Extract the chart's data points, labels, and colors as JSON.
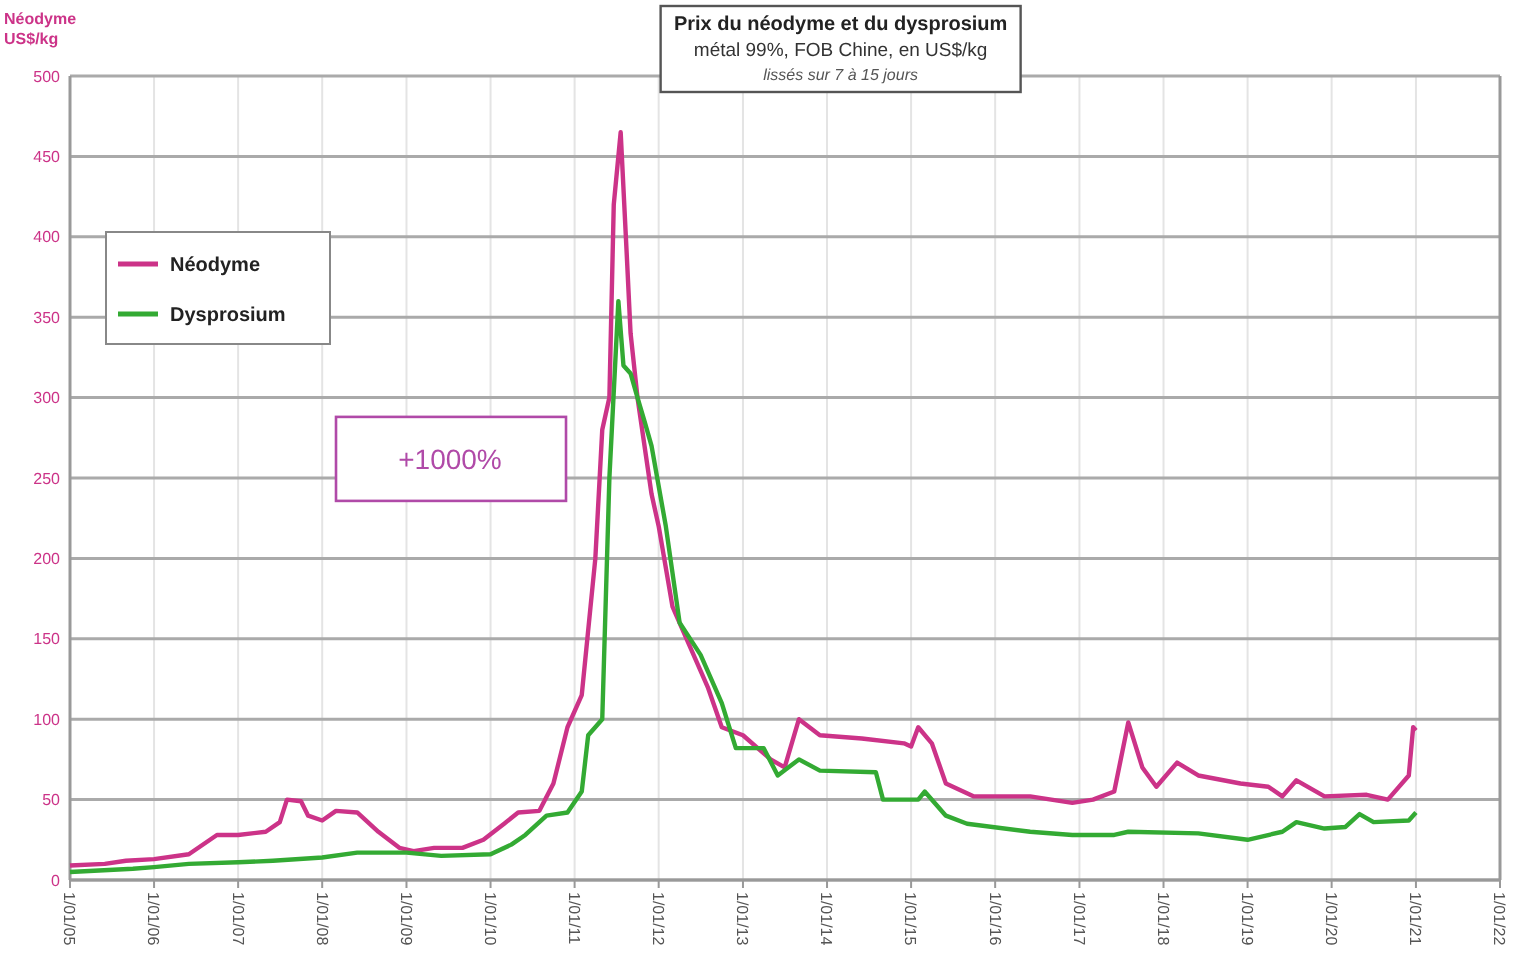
{
  "chart_data": {
    "type": "line",
    "title": "Prix du néodyme et du dysprosium",
    "subtitle": "métal 99%, FOB Chine, en US$/kg",
    "ylabel": "Néodyme\nUS$/kg",
    "annotations": [
      "+1000%",
      "lissés sur 7 à 15 jours"
    ],
    "legend": "top left",
    "grid": true,
    "line_style": "solid",
    "marker": "none",
    "xlim": [
      "2005-01-01",
      "2022-01-01"
    ],
    "xticks": [
      {
        "value": "2005-01-01",
        "label": "1/01/05"
      },
      {
        "value": "2006-01-01",
        "label": "1/01/06"
      },
      {
        "value": "2007-01-01",
        "label": "1/01/07"
      },
      {
        "value": "2008-01-01",
        "label": "1/01/08"
      },
      {
        "value": "2009-01-01",
        "label": "1/01/09"
      },
      {
        "value": "2010-01-01",
        "label": "1/01/10"
      },
      {
        "value": "2011-01-01",
        "label": "1/01/11"
      },
      {
        "value": "2012-01-01",
        "label": "1/01/12"
      },
      {
        "value": "2013-01-01",
        "label": "1/01/13"
      },
      {
        "value": "2014-01-01",
        "label": "1/01/14"
      },
      {
        "value": "2015-01-01",
        "label": "1/01/15"
      },
      {
        "value": "2016-01-01",
        "label": "1/01/16"
      },
      {
        "value": "2017-01-01",
        "label": "1/01/17"
      },
      {
        "value": "2018-01-01",
        "label": "1/01/18"
      },
      {
        "value": "2019-01-01",
        "label": "1/01/19"
      },
      {
        "value": "2020-01-01",
        "label": "1/01/20"
      },
      {
        "value": "2021-01-01",
        "label": "1/01/21"
      },
      {
        "value": "2022-01-01",
        "label": "1/01/22"
      }
    ],
    "ylim": [
      0,
      500
    ],
    "yticks": [
      0,
      50,
      100,
      150,
      200,
      250,
      300,
      350,
      400,
      450,
      500
    ],
    "series": [
      {
        "name": "Néodyme",
        "color": "#cc3388",
        "x": [
          "2005-01",
          "2005-06",
          "2005-09",
          "2006-01",
          "2006-06",
          "2006-10",
          "2007-01",
          "2007-05",
          "2007-07",
          "2007-08",
          "2007-10",
          "2007-11",
          "2008-01",
          "2008-03",
          "2008-06",
          "2008-09",
          "2008-12",
          "2009-02",
          "2009-05",
          "2009-09",
          "2009-12",
          "2010-03",
          "2010-05",
          "2010-08",
          "2010-10",
          "2010-12",
          "2011-02",
          "2011-04",
          "2011-05",
          "2011-06",
          "2011-06-20",
          "2011-07-20",
          "2011-08-15",
          "2011-09",
          "2011-10",
          "2011-12",
          "2012-01",
          "2012-03",
          "2012-05",
          "2012-08",
          "2012-10",
          "2013-01",
          "2013-05",
          "2013-07",
          "2013-09",
          "2013-12",
          "2014-06",
          "2014-12",
          "2015-01",
          "2015-02",
          "2015-04",
          "2015-06",
          "2015-10",
          "2016-06",
          "2016-12",
          "2017-03",
          "2017-06",
          "2017-08",
          "2017-10",
          "2017-12",
          "2018-03",
          "2018-06",
          "2018-12",
          "2019-04",
          "2019-06",
          "2019-08",
          "2019-10",
          "2019-12",
          "2020-06",
          "2020-09",
          "2020-12",
          "2020-12-20",
          "2021-01"
        ],
        "values": [
          9,
          10,
          12,
          13,
          16,
          28,
          28,
          30,
          36,
          50,
          49,
          40,
          37,
          43,
          42,
          30,
          20,
          18,
          20,
          20,
          25,
          35,
          42,
          43,
          60,
          95,
          115,
          200,
          280,
          300,
          420,
          465,
          390,
          340,
          300,
          240,
          220,
          170,
          150,
          120,
          95,
          90,
          75,
          70,
          100,
          90,
          88,
          85,
          83,
          95,
          85,
          60,
          52,
          52,
          48,
          50,
          55,
          98,
          70,
          58,
          73,
          65,
          60,
          58,
          52,
          62,
          57,
          52,
          53,
          50,
          65,
          95,
          93
        ]
      },
      {
        "name": "Dysprosium",
        "color": "#33aa33",
        "x": [
          "2005-01",
          "2005-10",
          "2006-01",
          "2006-06",
          "2007-01",
          "2007-06",
          "2008-01",
          "2008-06",
          "2009-01",
          "2009-06",
          "2010-01",
          "2010-04",
          "2010-06",
          "2010-09",
          "2010-12",
          "2011-02",
          "2011-03",
          "2011-05",
          "2011-06",
          "2011-07-10",
          "2011-08",
          "2011-09",
          "2011-10",
          "2011-11",
          "2011-12",
          "2012-02",
          "2012-04",
          "2012-07",
          "2012-10",
          "2012-12",
          "2013-04",
          "2013-06",
          "2013-09",
          "2013-12",
          "2014-08",
          "2014-09",
          "2015-02",
          "2015-03",
          "2015-06",
          "2015-09",
          "2016-06",
          "2016-12",
          "2017-06",
          "2017-08",
          "2018-06",
          "2019-01",
          "2019-06",
          "2019-08",
          "2019-12",
          "2020-03",
          "2020-05",
          "2020-07",
          "2020-12",
          "2021-01"
        ],
        "values": [
          5,
          7,
          8,
          10,
          11,
          12,
          14,
          17,
          17,
          15,
          16,
          22,
          28,
          40,
          42,
          55,
          90,
          100,
          250,
          360,
          320,
          315,
          300,
          285,
          270,
          220,
          160,
          140,
          110,
          82,
          82,
          65,
          75,
          68,
          67,
          50,
          50,
          55,
          40,
          35,
          30,
          28,
          28,
          30,
          29,
          25,
          30,
          36,
          32,
          33,
          41,
          36,
          37,
          42
        ]
      }
    ]
  }
}
